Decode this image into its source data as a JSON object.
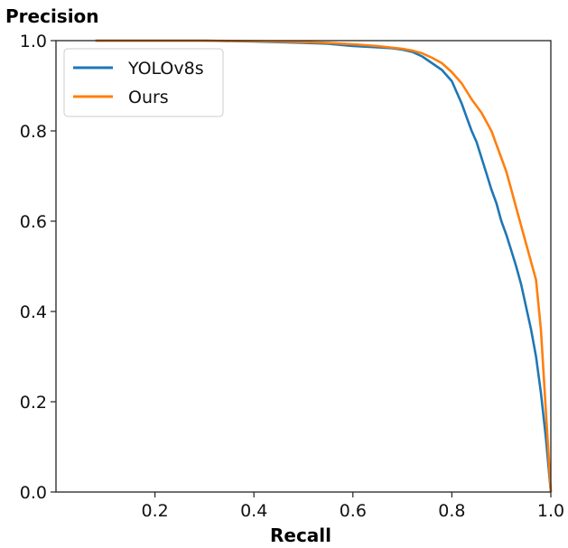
{
  "chart_data": {
    "type": "line",
    "title": "",
    "xlabel": "Recall",
    "ylabel": "Precision",
    "xlim": [
      0.0,
      1.0
    ],
    "ylim": [
      0.0,
      1.0
    ],
    "xticks": [
      0.2,
      0.4,
      0.6,
      0.8,
      1.0
    ],
    "xtick_labels": [
      "0.2",
      "0.4",
      "0.6",
      "0.8",
      "1.0"
    ],
    "yticks": [
      0.0,
      0.2,
      0.4,
      0.6,
      0.8,
      1.0
    ],
    "ytick_labels": [
      "0.0",
      "0.2",
      "0.4",
      "0.6",
      "0.8",
      "1.0"
    ],
    "grid": false,
    "legend": "top-left",
    "series": [
      {
        "name": "YOLOv8s",
        "color": "#1f77b4",
        "x": [
          0.08,
          0.2,
          0.3,
          0.4,
          0.5,
          0.55,
          0.6,
          0.65,
          0.68,
          0.7,
          0.72,
          0.74,
          0.76,
          0.78,
          0.8,
          0.81,
          0.82,
          0.83,
          0.84,
          0.85,
          0.86,
          0.87,
          0.88,
          0.89,
          0.9,
          0.91,
          0.92,
          0.93,
          0.94,
          0.95,
          0.96,
          0.97,
          0.98,
          0.99,
          1.0
        ],
        "y": [
          1.0,
          1.0,
          1.0,
          0.998,
          0.995,
          0.993,
          0.988,
          0.985,
          0.983,
          0.98,
          0.975,
          0.965,
          0.95,
          0.935,
          0.91,
          0.885,
          0.86,
          0.83,
          0.8,
          0.775,
          0.74,
          0.705,
          0.67,
          0.64,
          0.6,
          0.57,
          0.535,
          0.5,
          0.46,
          0.41,
          0.36,
          0.3,
          0.22,
          0.12,
          0.0
        ]
      },
      {
        "name": "Ours",
        "color": "#ff7f0e",
        "x": [
          0.08,
          0.2,
          0.3,
          0.4,
          0.5,
          0.55,
          0.6,
          0.65,
          0.7,
          0.72,
          0.74,
          0.76,
          0.78,
          0.8,
          0.82,
          0.84,
          0.86,
          0.88,
          0.89,
          0.9,
          0.91,
          0.92,
          0.93,
          0.94,
          0.95,
          0.96,
          0.97,
          0.98,
          0.99,
          1.0
        ],
        "y": [
          1.0,
          1.0,
          1.0,
          0.999,
          0.997,
          0.995,
          0.992,
          0.988,
          0.982,
          0.978,
          0.972,
          0.962,
          0.95,
          0.93,
          0.905,
          0.87,
          0.84,
          0.8,
          0.77,
          0.74,
          0.71,
          0.67,
          0.63,
          0.59,
          0.55,
          0.51,
          0.47,
          0.36,
          0.18,
          0.0
        ]
      }
    ]
  }
}
